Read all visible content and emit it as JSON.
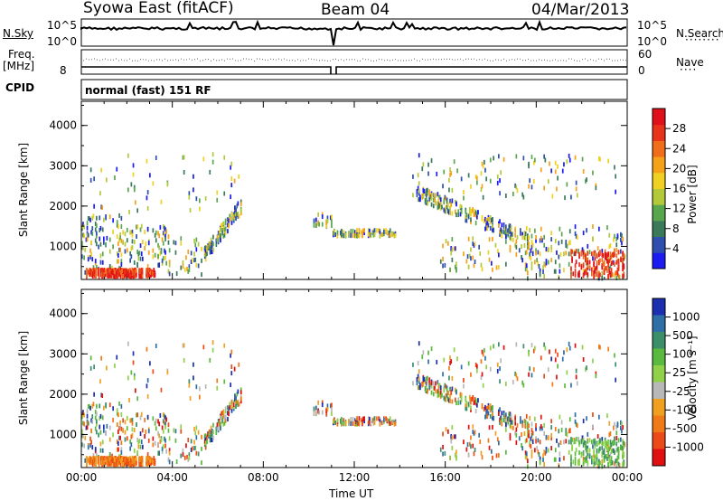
{
  "header": {
    "station": "Syowa East (fitACF)",
    "beam": "Beam 04",
    "date": "04/Mar/2013",
    "cpid_label": "CPID",
    "program": "normal (fast) 151 RF"
  },
  "top_panels": {
    "nsky_label": "N.Sky",
    "nsky_ticks": [
      "10^5",
      "10^0"
    ],
    "nsearch_label": "N.Search",
    "nsearch_ticks": [
      "10^5",
      "10^0"
    ],
    "freq_label": "Freq.",
    "freq_unit": "[MHz]",
    "freq_tick": "8",
    "nave_label": "Nave",
    "nave_ticks": [
      "60",
      "0"
    ]
  },
  "chart_data": [
    {
      "type": "heatmap",
      "name": "power",
      "xlabel": "",
      "ylabel": "Slant Range [km]",
      "xlim": [
        0,
        24
      ],
      "ylim": [
        180,
        4600
      ],
      "y_ticks": [
        "1000",
        "2000",
        "3000",
        "4000"
      ],
      "x_ticks": [
        "00:00",
        "04:00",
        "08:00",
        "12:00",
        "16:00",
        "20:00",
        "00:00"
      ],
      "colorbar_label": "Power [dB]",
      "colorbar_ticks": [
        "4",
        "8",
        "12",
        "16",
        "20",
        "24",
        "28"
      ],
      "colorbar_colors": [
        "#1c1cf0",
        "#2e4fb0",
        "#3a7a5a",
        "#59a64e",
        "#b3c93a",
        "#f0d020",
        "#f5a11a",
        "#f06e1a",
        "#e8321a",
        "#e0101a"
      ]
    },
    {
      "type": "heatmap",
      "name": "velocity",
      "xlabel": "Time UT",
      "ylabel": "Slant Range [km]",
      "xlim": [
        0,
        24
      ],
      "ylim": [
        180,
        4600
      ],
      "y_ticks": [
        "1000",
        "2000",
        "3000",
        "4000"
      ],
      "x_ticks": [
        "00:00",
        "04:00",
        "08:00",
        "12:00",
        "16:00",
        "20:00",
        "00:00"
      ],
      "colorbar_label": "Velocity [m s⁻¹]",
      "colorbar_ticks": [
        "1000",
        "500",
        "100",
        "25",
        "-25",
        "-100",
        "-500",
        "-1000"
      ],
      "colorbar_colors": [
        "#1c2fb0",
        "#2f6fa8",
        "#3a8f6a",
        "#5aba3f",
        "#8fd24a",
        "#b8b8b8",
        "#f0a020",
        "#f07a18",
        "#ec4a16",
        "#e01010"
      ]
    }
  ]
}
